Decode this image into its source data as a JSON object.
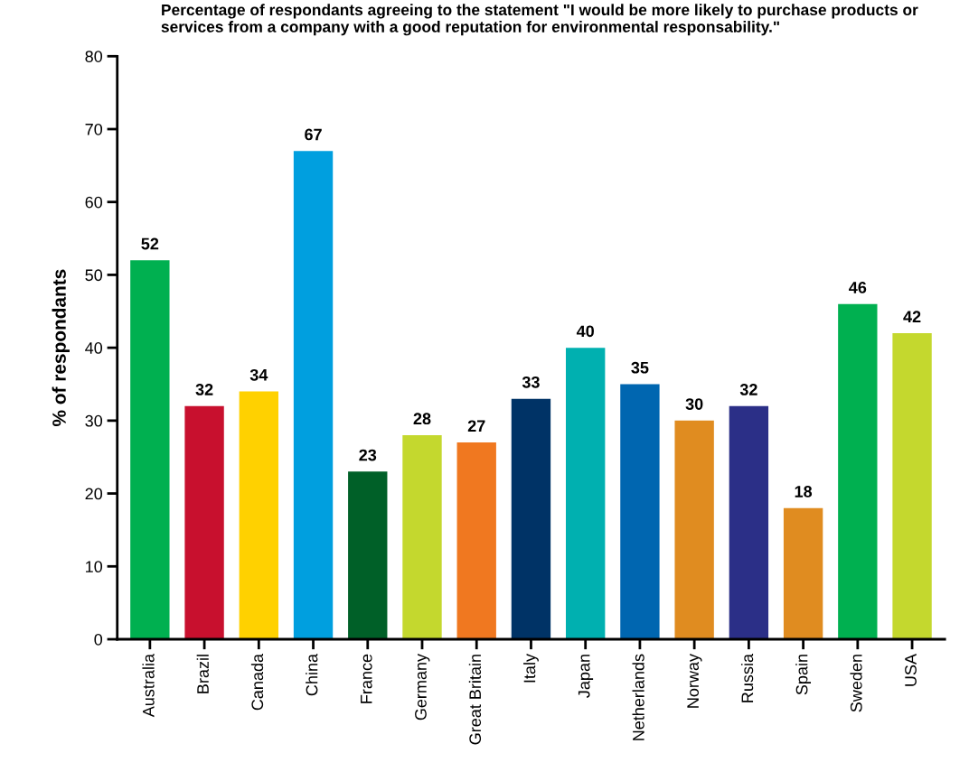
{
  "chart_data": {
    "type": "bar",
    "title": "Percentage of respondants agreeing to the statement \"I would be more likely to purchase products or services from a company with a good reputation for environmental responsability.\"",
    "ylabel": "% of respondants",
    "categories": [
      "Australia",
      "Brazil",
      "Canada",
      "China",
      "France",
      "Germany",
      "Great Britain",
      "Italy",
      "Japan",
      "Netherlands",
      "Norway",
      "Russia",
      "Spain",
      "Sweden",
      "USA"
    ],
    "values": [
      52,
      32,
      34,
      67,
      23,
      28,
      27,
      33,
      40,
      35,
      30,
      32,
      18,
      46,
      42
    ],
    "colors": [
      "#00b050",
      "#c8102e",
      "#ffd100",
      "#009fdf",
      "#006028",
      "#c4d82e",
      "#f07820",
      "#003366",
      "#00b0b0",
      "#0066b0",
      "#e08c20",
      "#2b2f87",
      "#e08c20",
      "#00b050",
      "#c4d82e"
    ],
    "ylim": [
      0,
      80
    ],
    "yticks": [
      0,
      10,
      20,
      30,
      40,
      50,
      60,
      70,
      80
    ],
    "data_labels": true,
    "grid": false,
    "legend": false
  }
}
